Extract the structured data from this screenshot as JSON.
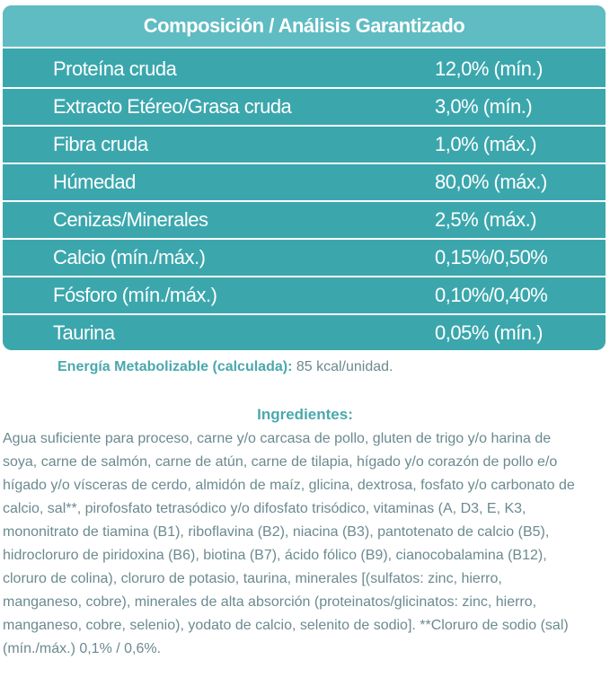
{
  "table": {
    "title": "Composición / Análisis Garantizado",
    "rows": [
      {
        "label": "Proteína cruda",
        "value": "12,0% (mín.)"
      },
      {
        "label": "Extracto Etéreo/Grasa cruda",
        "value": "3,0% (mín.)"
      },
      {
        "label": "Fibra cruda",
        "value": "1,0% (máx.)"
      },
      {
        "label": "Húmedad",
        "value": "80,0% (máx.)"
      },
      {
        "label": "Cenizas/Minerales",
        "value": "2,5% (máx.)"
      },
      {
        "label": "Calcio (mín./máx.)",
        "value": "0,15%/0,50%"
      },
      {
        "label": "Fósforo (mín./máx.)",
        "value": "0,10%/0,40%"
      },
      {
        "label": "Taurina",
        "value": "0,05% (mín.)"
      }
    ]
  },
  "energy": {
    "label": "Energía Metabolizable (calculada):",
    "value": " 85 kcal/unidad."
  },
  "ingredients": {
    "title": "Ingredientes:",
    "lines": [
      "Agua suficiente para proceso, carne y/o carcasa de pollo, gluten de trigo y/o harina de",
      "soya, carne de salmón, carne de atún, carne de tilapia, hígado y/o corazón de pollo e/o",
      "hígado y/o vísceras de cerdo, almidón de maíz, glicina, dextrosa, fosfato y/o carbonato de",
      "calcio, sal**, pirofosfato tetrasódico y/o difosfato trisódico, vitaminas (A, D3, E, K3,",
      "mononitrato de tiamina (B1), riboflavina (B2), niacina (B3), pantotenato de calcio (B5),",
      "hidrocloruro de piridoxina (B6), biotina (B7), ácido fólico (B9), cianocobalamina (B12),",
      "cloruro de colina), cloruro de potasio, taurina, minerales [(sulfatos: zinc, hierro,",
      "manganeso, cobre), minerales de alta absorción (proteinatos/glicinatos: zinc, hierro,",
      "manganeso, cobre, selenio), yodato de calcio, selenito de sodio]. **Cloruro de sodio (sal)",
      "(mín./máx.) 0,1% / 0,6%."
    ]
  },
  "colors": {
    "table_bg": "#3ba7ad",
    "header_bg": "#5fbcc2",
    "accent_text": "#4aa8ad",
    "body_text": "#6b8a90"
  }
}
